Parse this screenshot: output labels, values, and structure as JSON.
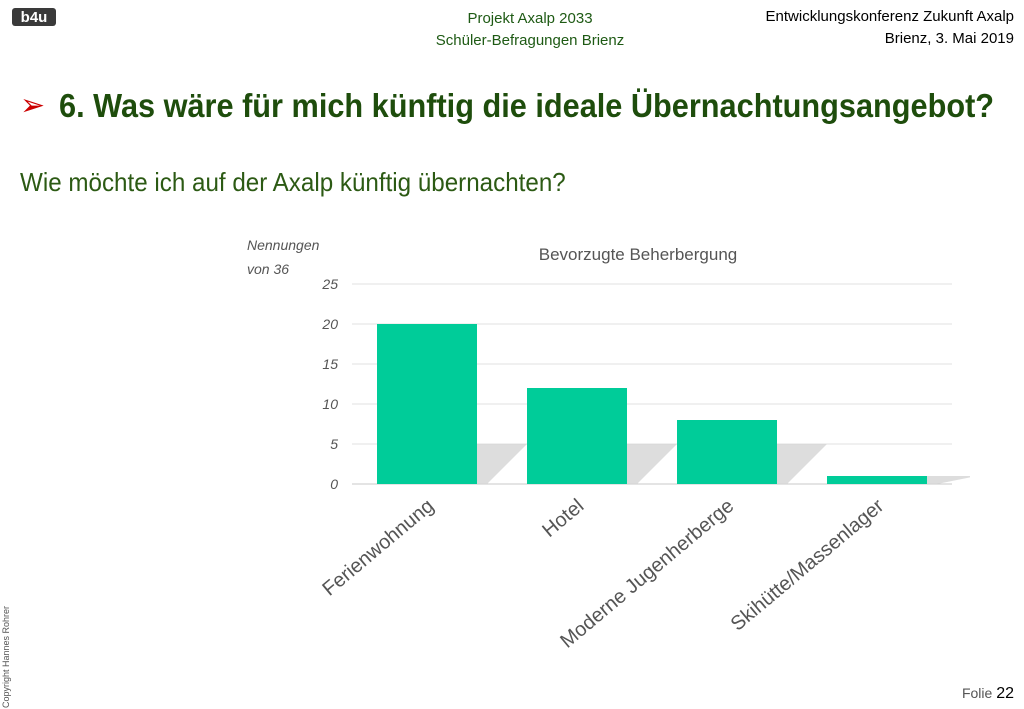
{
  "header": {
    "logo_text": "b4u",
    "project_line1": "Projekt Axalp 2033",
    "project_line2": "Schüler-Befragungen Brienz",
    "event_line1": "Entwicklungskonferenz Zukunft Axalp",
    "event_line2": "Brienz, 3. Mai 2019"
  },
  "slide": {
    "headline": "6. Was wäre für mich künftig die ideale Übernachtungsangebot?",
    "question": "Wie möchte ich auf der Axalp künftig übernachten?"
  },
  "chart_data": {
    "type": "bar",
    "title": "Bevorzugte Beherbergung",
    "ylabel_line1": "Nennungen",
    "ylabel_line2": "von 36",
    "categories": [
      "Ferienwohnung",
      "Hotel",
      "Moderne Jugenherberge",
      "Skihütte/Massenlager"
    ],
    "values": [
      20,
      12,
      8,
      1
    ],
    "ylim": [
      0,
      25
    ],
    "yticks": [
      "0",
      "5",
      "10",
      "15",
      "20",
      "25"
    ],
    "grid": true,
    "bar_color": "#00cc99"
  },
  "footer": {
    "copyright": "Copyright Hannes Rohrer",
    "folio_label": "Folie",
    "folio_number": "22"
  }
}
